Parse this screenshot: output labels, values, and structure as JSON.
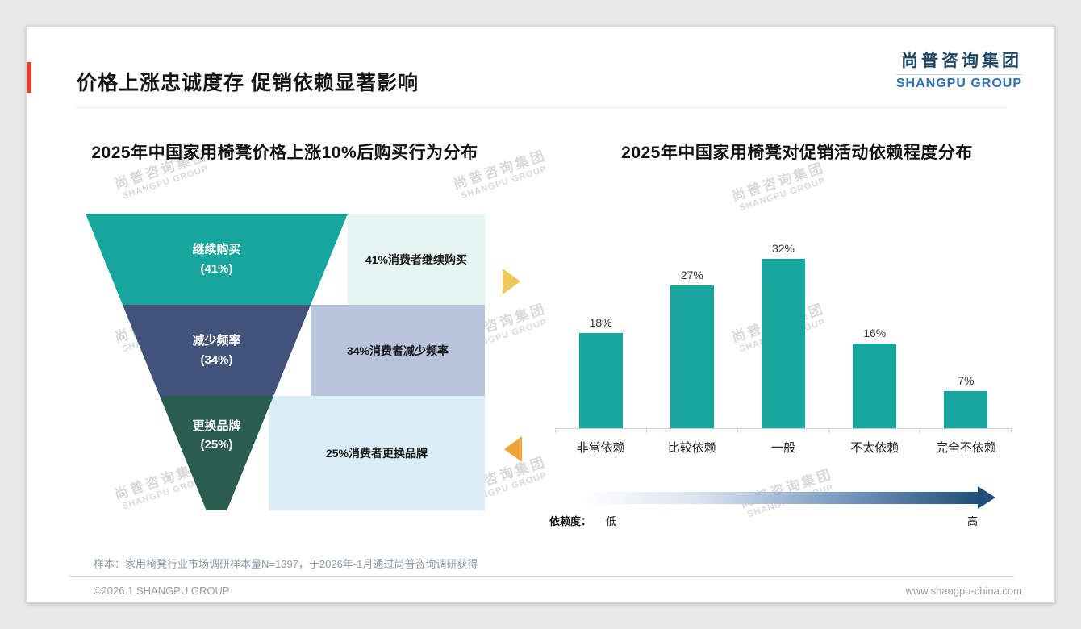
{
  "header": {
    "title": "价格上涨忠诚度存 促销依赖显著影响",
    "accent_color": "#e63c2f"
  },
  "logo": {
    "cn": "尚普咨询集团",
    "en": "SHANGPU GROUP"
  },
  "watermark": {
    "cn": "尚普咨询集团",
    "en": "SHANGPU GROUP"
  },
  "chart_data": [
    {
      "type": "funnel",
      "title": "2025年中国家用椅凳价格上涨10%后购买行为分布",
      "unit": "%",
      "stages": [
        {
          "label": "继续购买",
          "pct_label": "(41%)",
          "value": 41,
          "desc": "41%消费者继续购买",
          "shape_color": "#17a69e",
          "box_color": "#e7f5f2"
        },
        {
          "label": "减少频率",
          "pct_label": "(34%)",
          "value": 34,
          "desc": "34%消费者减少频率",
          "shape_color": "#415379",
          "box_color": "#b9c4dd"
        },
        {
          "label": "更换品牌",
          "pct_label": "(25%)",
          "value": 25,
          "desc": "25%消费者更换品牌",
          "shape_color": "#2b5c50",
          "box_color": "#d9edf6"
        }
      ]
    },
    {
      "type": "bar",
      "title": "2025年中国家用椅凳对促销活动依赖程度分布",
      "categories": [
        "非常依赖",
        "比较依赖",
        "一般",
        "不太依赖",
        "完全不依赖"
      ],
      "values": [
        18,
        27,
        32,
        16,
        7
      ],
      "unit": "%",
      "ylim": [
        0,
        35
      ],
      "bar_color": "#17a69e",
      "legend": {
        "label": "依赖度：",
        "low": "低",
        "high": "高"
      }
    }
  ],
  "footer": {
    "note": "样本：家用椅凳行业市场调研样本量N=1397，于2026年-1月通过尚普咨询调研获得",
    "copyright": "©2026.1 SHANGPU GROUP",
    "website": "www.shangpu-china.com"
  }
}
